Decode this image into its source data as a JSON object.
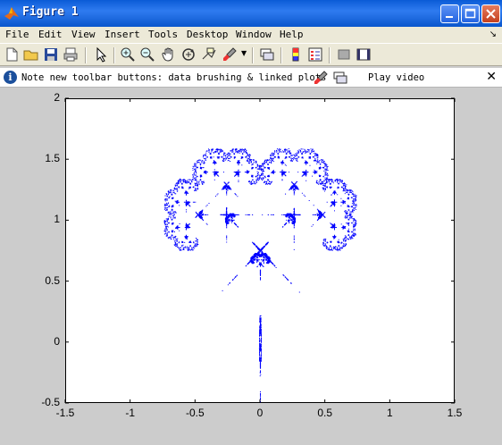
{
  "window": {
    "title": "Figure 1"
  },
  "menu": {
    "items": [
      "File",
      "Edit",
      "View",
      "Insert",
      "Tools",
      "Desktop",
      "Window",
      "Help"
    ]
  },
  "infobar": {
    "note": "Note new toolbar buttons: data brushing & linked plots",
    "play_label": "Play video"
  },
  "chart_data": {
    "type": "scatter",
    "description_of_points": "fractal tree point cloud",
    "xlim": [
      -1.5,
      1.5
    ],
    "ylim": [
      -0.5,
      2
    ],
    "xticks": [
      -1.5,
      -1,
      -0.5,
      0,
      0.5,
      1,
      1.5
    ],
    "yticks": [
      -0.5,
      0,
      0.5,
      1,
      1.5,
      2
    ],
    "xtick_labels": [
      "-1.5",
      "-1",
      "-0.5",
      "0",
      "0.5",
      "1",
      "1.5"
    ],
    "ytick_labels": [
      "-0.5",
      "0",
      "0.5",
      "1",
      "1.5",
      "2"
    ],
    "marker_color": "#0000ff",
    "grid": false
  }
}
